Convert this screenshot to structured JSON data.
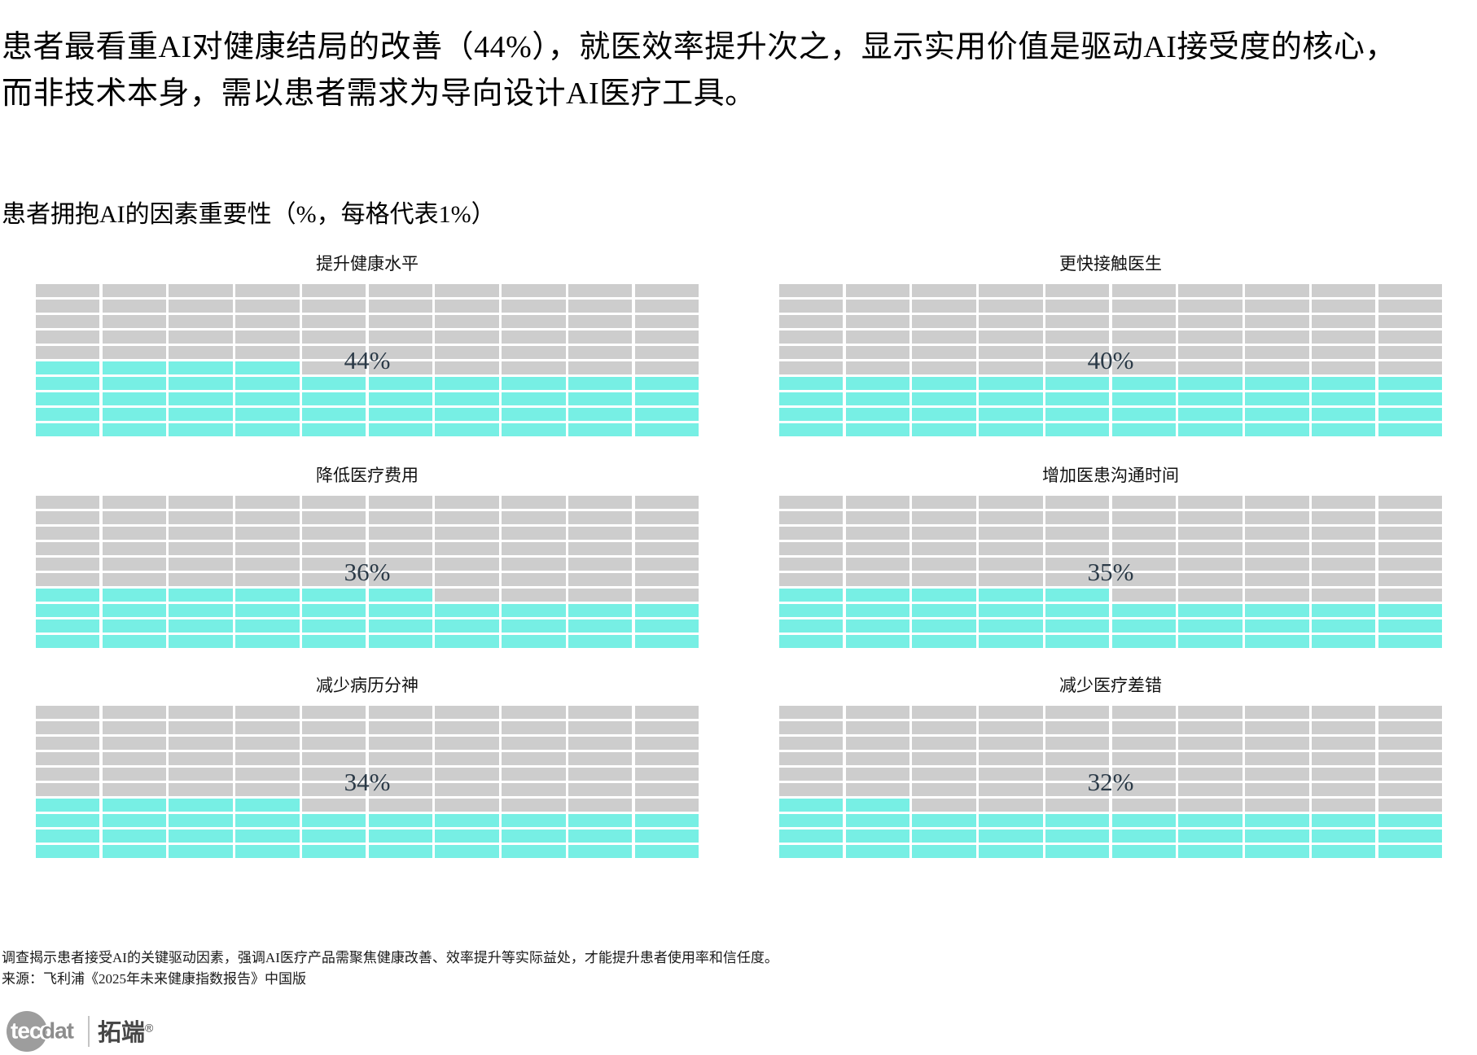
{
  "page": {
    "title_line1": "患者最看重AI对健康结局的改善（44%），就医效率提升次之，显示实用价值是驱动AI接受度的核心，",
    "title_line2": "而非技术本身，需以患者需求为导向设计AI医疗工具。",
    "subtitle": "患者拥抱AI的因素重要性（%，每格代表1%）",
    "footnote_line1": "调查揭示患者接受AI的关键驱动因素，强调AI医疗产品需聚焦健康改善、效率提升等实际益处，才能提升患者使用率和信任度。",
    "footnote_line2": "来源：飞利浦《2025年未来健康指数报告》中国版"
  },
  "colors": {
    "filled": "#77EFE4",
    "empty": "#cdcdcd",
    "label": "#2b3a47",
    "background": "#ffffff"
  },
  "chart_data": {
    "type": "waffle",
    "title": "患者拥抱AI的因素重要性（%，每格代表1%）",
    "grid_rows": 10,
    "grid_cols": 10,
    "cell_unit_percent": 1,
    "fill_direction": "bottom-left, row by row",
    "legend_position": "none",
    "series": [
      {
        "label": "提升健康水平",
        "value": 44,
        "display": "44%"
      },
      {
        "label": "更快接触医生",
        "value": 40,
        "display": "40%"
      },
      {
        "label": "降低医疗费用",
        "value": 36,
        "display": "36%"
      },
      {
        "label": "增加医患沟通时间",
        "value": 35,
        "display": "35%"
      },
      {
        "label": "减少病历分神",
        "value": 34,
        "display": "34%"
      },
      {
        "label": "减少医疗差错",
        "value": 32,
        "display": "32%"
      }
    ]
  },
  "logo": {
    "circle_text": "tec",
    "after_text": "dat",
    "brand_cjk": "拓端",
    "registered_mark": "®"
  }
}
